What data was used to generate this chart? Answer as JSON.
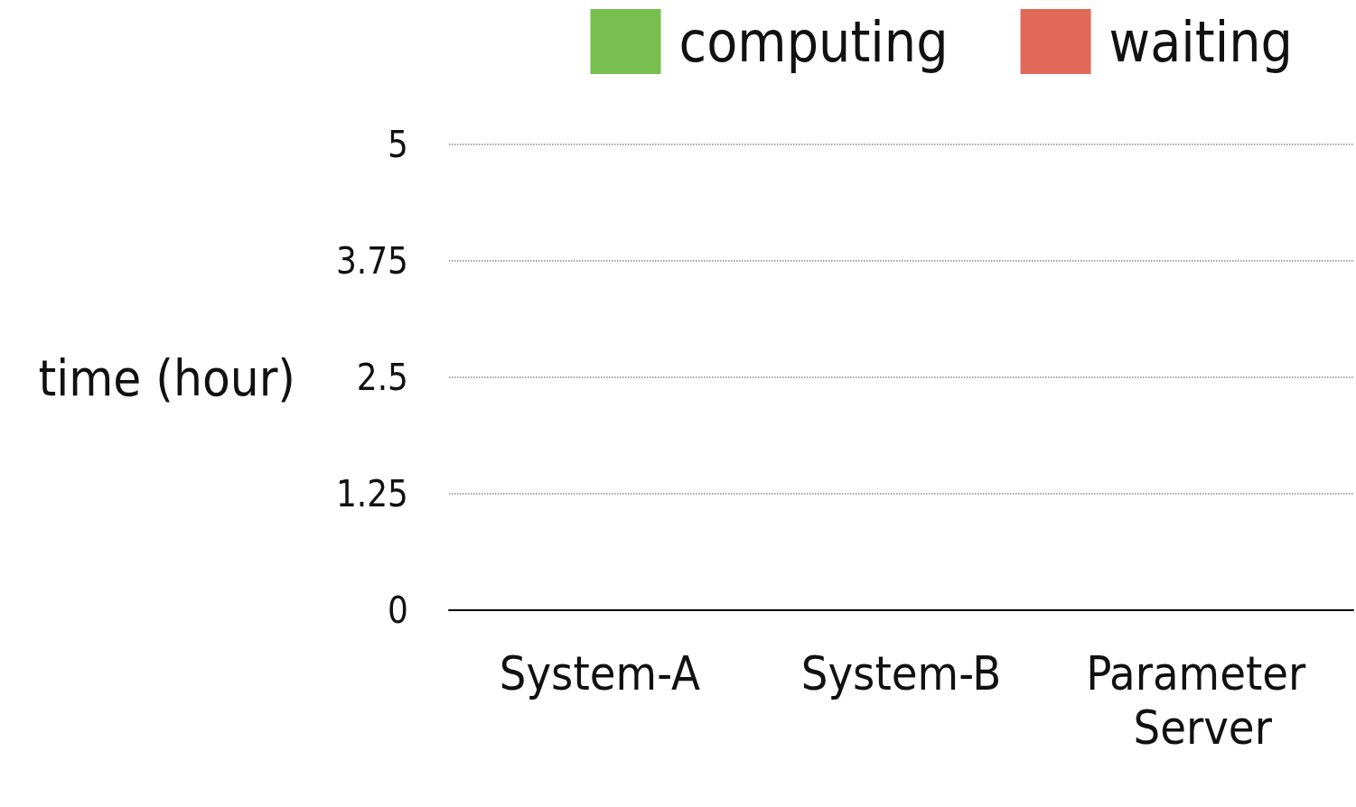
{
  "chart_data": {
    "type": "bar",
    "ylabel": "time (hour)",
    "categories": [
      "System-A",
      "System-B",
      "Parameter Server"
    ],
    "series": [
      {
        "name": "computing",
        "color": "#77bf4f",
        "values": [
          null,
          null,
          null
        ]
      },
      {
        "name": "waiting",
        "color": "#e16959",
        "values": [
          null,
          null,
          null
        ]
      }
    ],
    "ylim": [
      0,
      5
    ],
    "yticks": [
      0,
      1.25,
      2.5,
      3.75,
      5
    ],
    "grid": "y",
    "legend": "top right"
  }
}
